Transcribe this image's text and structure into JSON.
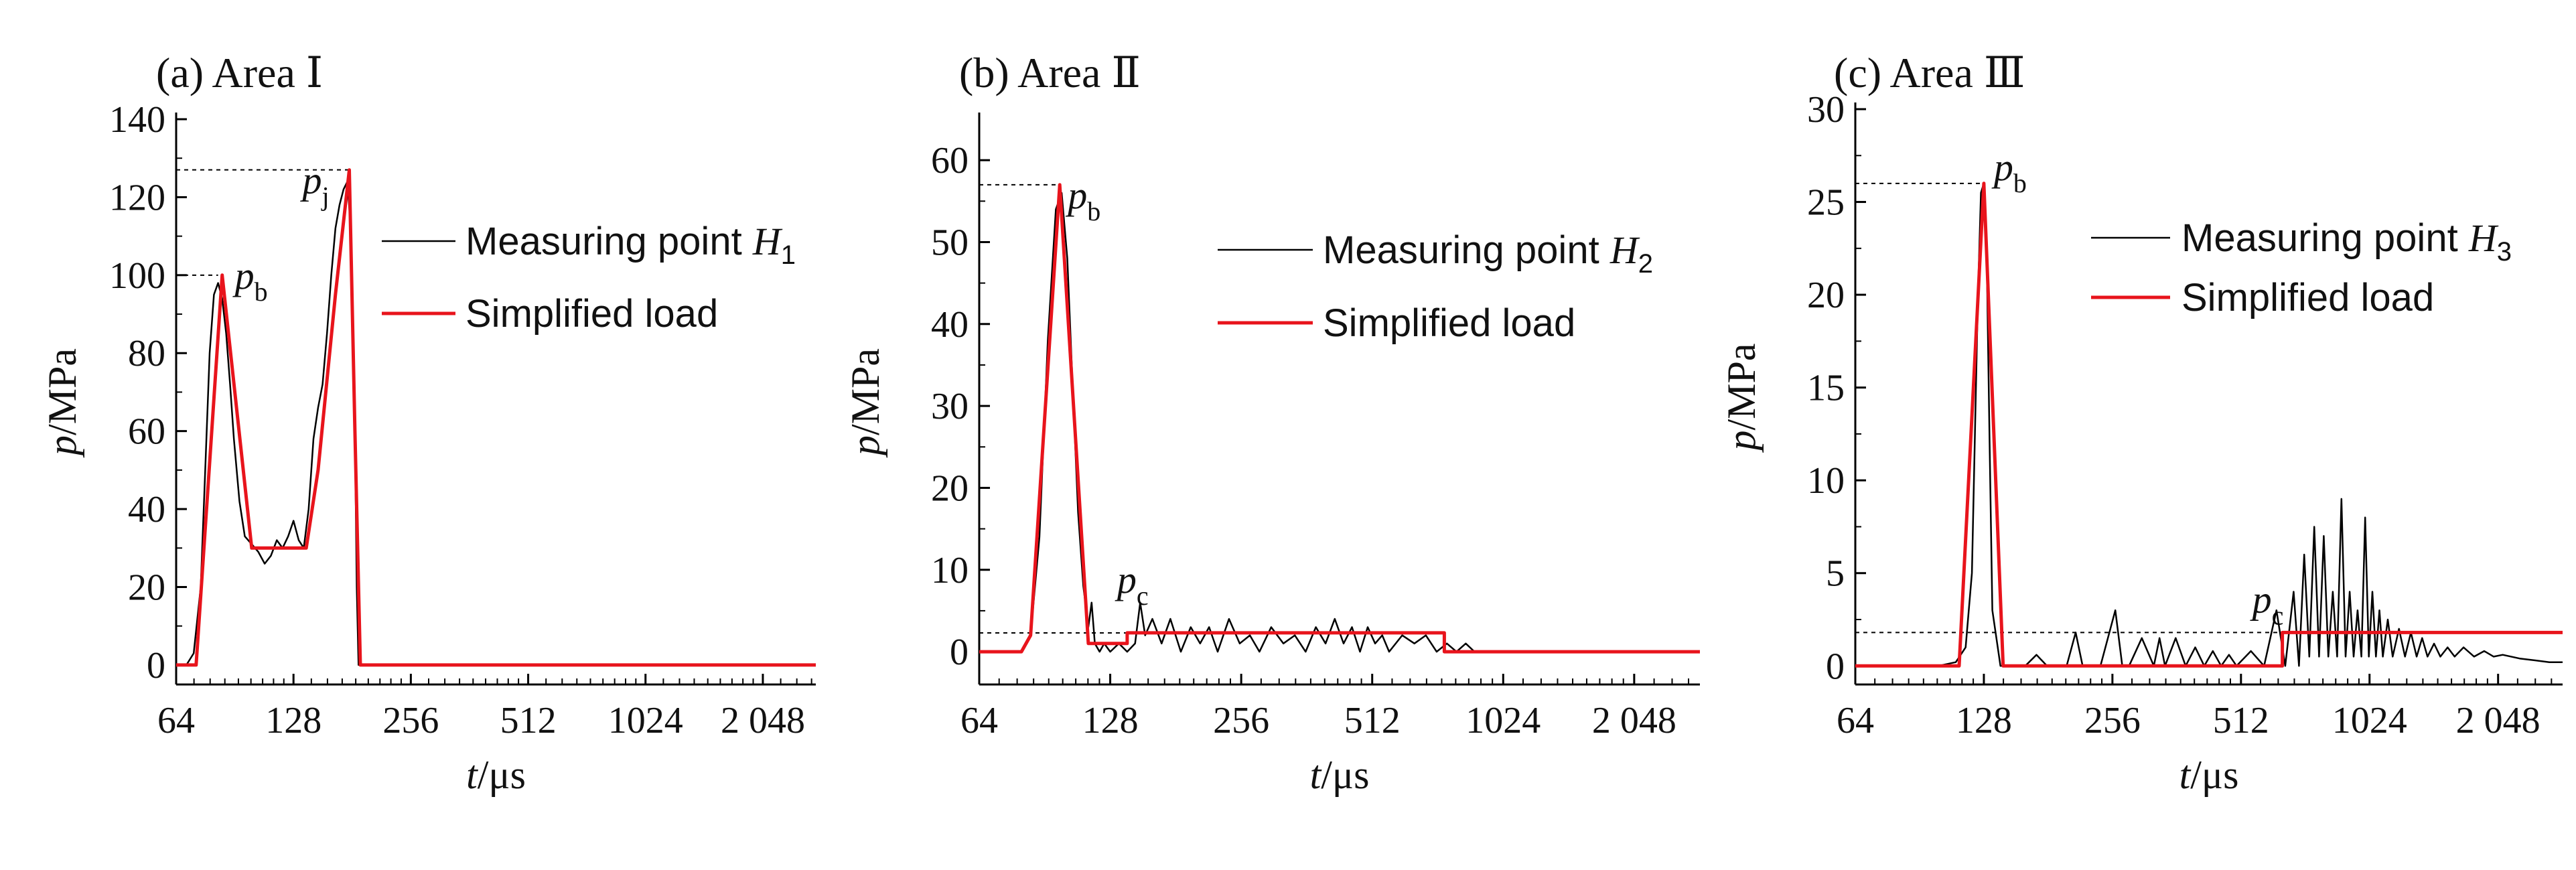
{
  "chart_data": [
    {
      "type": "line",
      "title": "(a) Area Ⅰ",
      "xlabel": "t/μs",
      "ylabel": "p/MPa",
      "x_scale": "log2",
      "xlim": [
        64,
        2800
      ],
      "ylim": [
        -5,
        140
      ],
      "x_ticks": [
        64,
        128,
        256,
        512,
        1024,
        2048
      ],
      "x_tick_labels": [
        "64",
        "128",
        "256",
        "512",
        "1024",
        "2 048"
      ],
      "y_ticks": [
        0,
        20,
        40,
        60,
        80,
        100,
        120,
        140
      ],
      "y_tick_labels": [
        "0",
        "20",
        "40",
        "60",
        "80",
        "100",
        "120",
        "140"
      ],
      "legend": {
        "placement": "right"
      },
      "series": [
        {
          "name": "Measuring point H1",
          "name_main": "Measuring point ",
          "name_var": "H",
          "name_sub": "1",
          "color": "#000000",
          "x": [
            64,
            68,
            71,
            74,
            76,
            78,
            80,
            82,
            84,
            86,
            88,
            90,
            93,
            96,
            100,
            104,
            108,
            112,
            116,
            120,
            124,
            128,
            132,
            136,
            140,
            144,
            148,
            152,
            156,
            160,
            164,
            168,
            172,
            176,
            180,
            184,
            186,
            188,
            190,
            2800
          ],
          "y": [
            0,
            0,
            3,
            20,
            50,
            80,
            95,
            98,
            94,
            85,
            72,
            58,
            42,
            33,
            31,
            29,
            26,
            28,
            32,
            30,
            33,
            37,
            32,
            30,
            40,
            58,
            66,
            72,
            85,
            100,
            112,
            118,
            122,
            124,
            110,
            60,
            20,
            0,
            0,
            0
          ]
        },
        {
          "name": "Simplified load",
          "color": "#e8141c",
          "x": [
            64,
            72,
            84,
            100,
            128,
            138,
            148,
            164,
            178,
            184,
            190,
            2800
          ],
          "y": [
            0,
            0,
            100,
            30,
            30,
            30,
            50,
            95,
            127,
            60,
            0,
            0
          ]
        }
      ],
      "annotations": [
        {
          "label": "p",
          "sub": "b",
          "value": 100,
          "x_end": 82
        },
        {
          "label": "p",
          "sub": "j",
          "value": 127,
          "x_end": 178
        }
      ]
    },
    {
      "type": "line",
      "title": "(b) Area Ⅱ",
      "xlabel": "t/μs",
      "ylabel": "p/MPa",
      "x_scale": "log2",
      "xlim": [
        64,
        2900
      ],
      "ylim": [
        -4,
        65
      ],
      "x_ticks": [
        64,
        128,
        256,
        512,
        1024,
        2048
      ],
      "x_tick_labels": [
        "64",
        "128",
        "256",
        "512",
        "1024",
        "2 048"
      ],
      "y_ticks": [
        0,
        10,
        20,
        30,
        40,
        50,
        60
      ],
      "y_tick_labels": [
        "0",
        "10",
        "20",
        "30",
        "40",
        "50",
        "60"
      ],
      "legend": {
        "placement": "right"
      },
      "series": [
        {
          "name": "Measuring point H2",
          "name_main": "Measuring point ",
          "name_var": "H",
          "name_sub": "2",
          "color": "#000000",
          "x": [
            64,
            74,
            80,
            84,
            88,
            92,
            96,
            99,
            102,
            105,
            108,
            111,
            114,
            116,
            118,
            121,
            124,
            128,
            134,
            140,
            146,
            150,
            154,
            160,
            168,
            176,
            186,
            196,
            206,
            216,
            226,
            240,
            254,
            268,
            282,
            300,
            320,
            340,
            360,
            380,
            400,
            420,
            440,
            460,
            480,
            500,
            520,
            540,
            560,
            600,
            640,
            680,
            720,
            760,
            800,
            840,
            880,
            920,
            960,
            2900
          ],
          "y": [
            0,
            0,
            0,
            2,
            14,
            38,
            54,
            56,
            48,
            32,
            17,
            8,
            3,
            6,
            1,
            0,
            1,
            0,
            1,
            0,
            1,
            6,
            2,
            4,
            1,
            4,
            0,
            3,
            1,
            3,
            0,
            4,
            1,
            2,
            0,
            3,
            1,
            2,
            0,
            3,
            1,
            4,
            1,
            3,
            0,
            3,
            1,
            2,
            0,
            2,
            1,
            2,
            0,
            1,
            0,
            1,
            0,
            0,
            0,
            0
          ]
        },
        {
          "name": "Simplified load",
          "color": "#e8141c",
          "x": [
            64,
            80,
            84,
            98,
            114,
            140,
            140,
            750,
            750,
            2900
          ],
          "y": [
            0,
            0,
            2,
            57,
            1,
            1,
            2.3,
            2.3,
            0,
            0
          ]
        }
      ],
      "annotations": [
        {
          "label": "p",
          "sub": "b",
          "value": 57,
          "x_end": 98
        },
        {
          "label": "p",
          "sub": "c",
          "value": 2.3,
          "x_end": 140
        }
      ]
    },
    {
      "type": "line",
      "title": "(c) Area Ⅲ",
      "xlabel": "t/μs",
      "ylabel": "p/MPa",
      "x_scale": "log2",
      "xlim": [
        64,
        2900
      ],
      "ylim": [
        -1,
        30
      ],
      "x_ticks": [
        64,
        128,
        256,
        512,
        1024,
        2048
      ],
      "x_tick_labels": [
        "64",
        "128",
        "256",
        "512",
        "1024",
        "2 048"
      ],
      "y_ticks": [
        0,
        5,
        10,
        15,
        20,
        25,
        30
      ],
      "y_tick_labels": [
        "0",
        "5",
        "10",
        "15",
        "20",
        "25",
        "30"
      ],
      "legend": {
        "placement": "right"
      },
      "series": [
        {
          "name": "Measuring point H3",
          "name_main": "Measuring point ",
          "name_var": "H",
          "name_sub": "3",
          "color": "#000000",
          "x": [
            64,
            100,
            110,
            116,
            120,
            124,
            126,
            128,
            130,
            132,
            134,
            140,
            160,
            170,
            180,
            200,
            210,
            218,
            226,
            240,
            260,
            270,
            280,
            300,
            320,
            330,
            340,
            360,
            380,
            400,
            420,
            440,
            460,
            480,
            500,
            540,
            580,
            620,
            650,
            680,
            700,
            720,
            740,
            760,
            780,
            800,
            820,
            840,
            860,
            880,
            900,
            920,
            940,
            960,
            980,
            1000,
            1020,
            1040,
            1060,
            1080,
            1100,
            1130,
            1160,
            1200,
            1240,
            1280,
            1320,
            1360,
            1400,
            1450,
            1500,
            1560,
            1620,
            1700,
            1800,
            1900,
            2000,
            2100,
            2300,
            2500,
            2700,
            2900
          ],
          "y": [
            0,
            0,
            0.2,
            1,
            5,
            20,
            25.5,
            26,
            22,
            12,
            3,
            0,
            0,
            0.6,
            0,
            0,
            1.8,
            0,
            0,
            0,
            3,
            0,
            0,
            1.5,
            0,
            1.5,
            0,
            1.5,
            0,
            1,
            0,
            0.8,
            0,
            0.6,
            0,
            0.8,
            0,
            3,
            0,
            4,
            0,
            6,
            0.5,
            7.5,
            0.5,
            7,
            0.5,
            4,
            0.5,
            9,
            0.5,
            4,
            0.5,
            3,
            0.5,
            8,
            0.5,
            4,
            0.5,
            3,
            0.5,
            2.5,
            0.5,
            2,
            0.5,
            1.8,
            0.5,
            1.5,
            0.5,
            1.2,
            0.5,
            1,
            0.5,
            1,
            0.5,
            0.8,
            0.5,
            0.6,
            0.4,
            0.3,
            0.2,
            0.2
          ]
        },
        {
          "name": "Simplified load",
          "color": "#e8141c",
          "x": [
            64,
            112,
            128,
            142,
            640,
            640,
            2900
          ],
          "y": [
            0,
            0,
            26,
            0,
            0,
            1.8,
            1.8
          ]
        }
      ],
      "annotations": [
        {
          "label": "p",
          "sub": "b",
          "value": 26,
          "x_end": 128
        },
        {
          "label": "p",
          "sub": "c",
          "value": 1.8,
          "x_end": 640
        }
      ]
    }
  ]
}
